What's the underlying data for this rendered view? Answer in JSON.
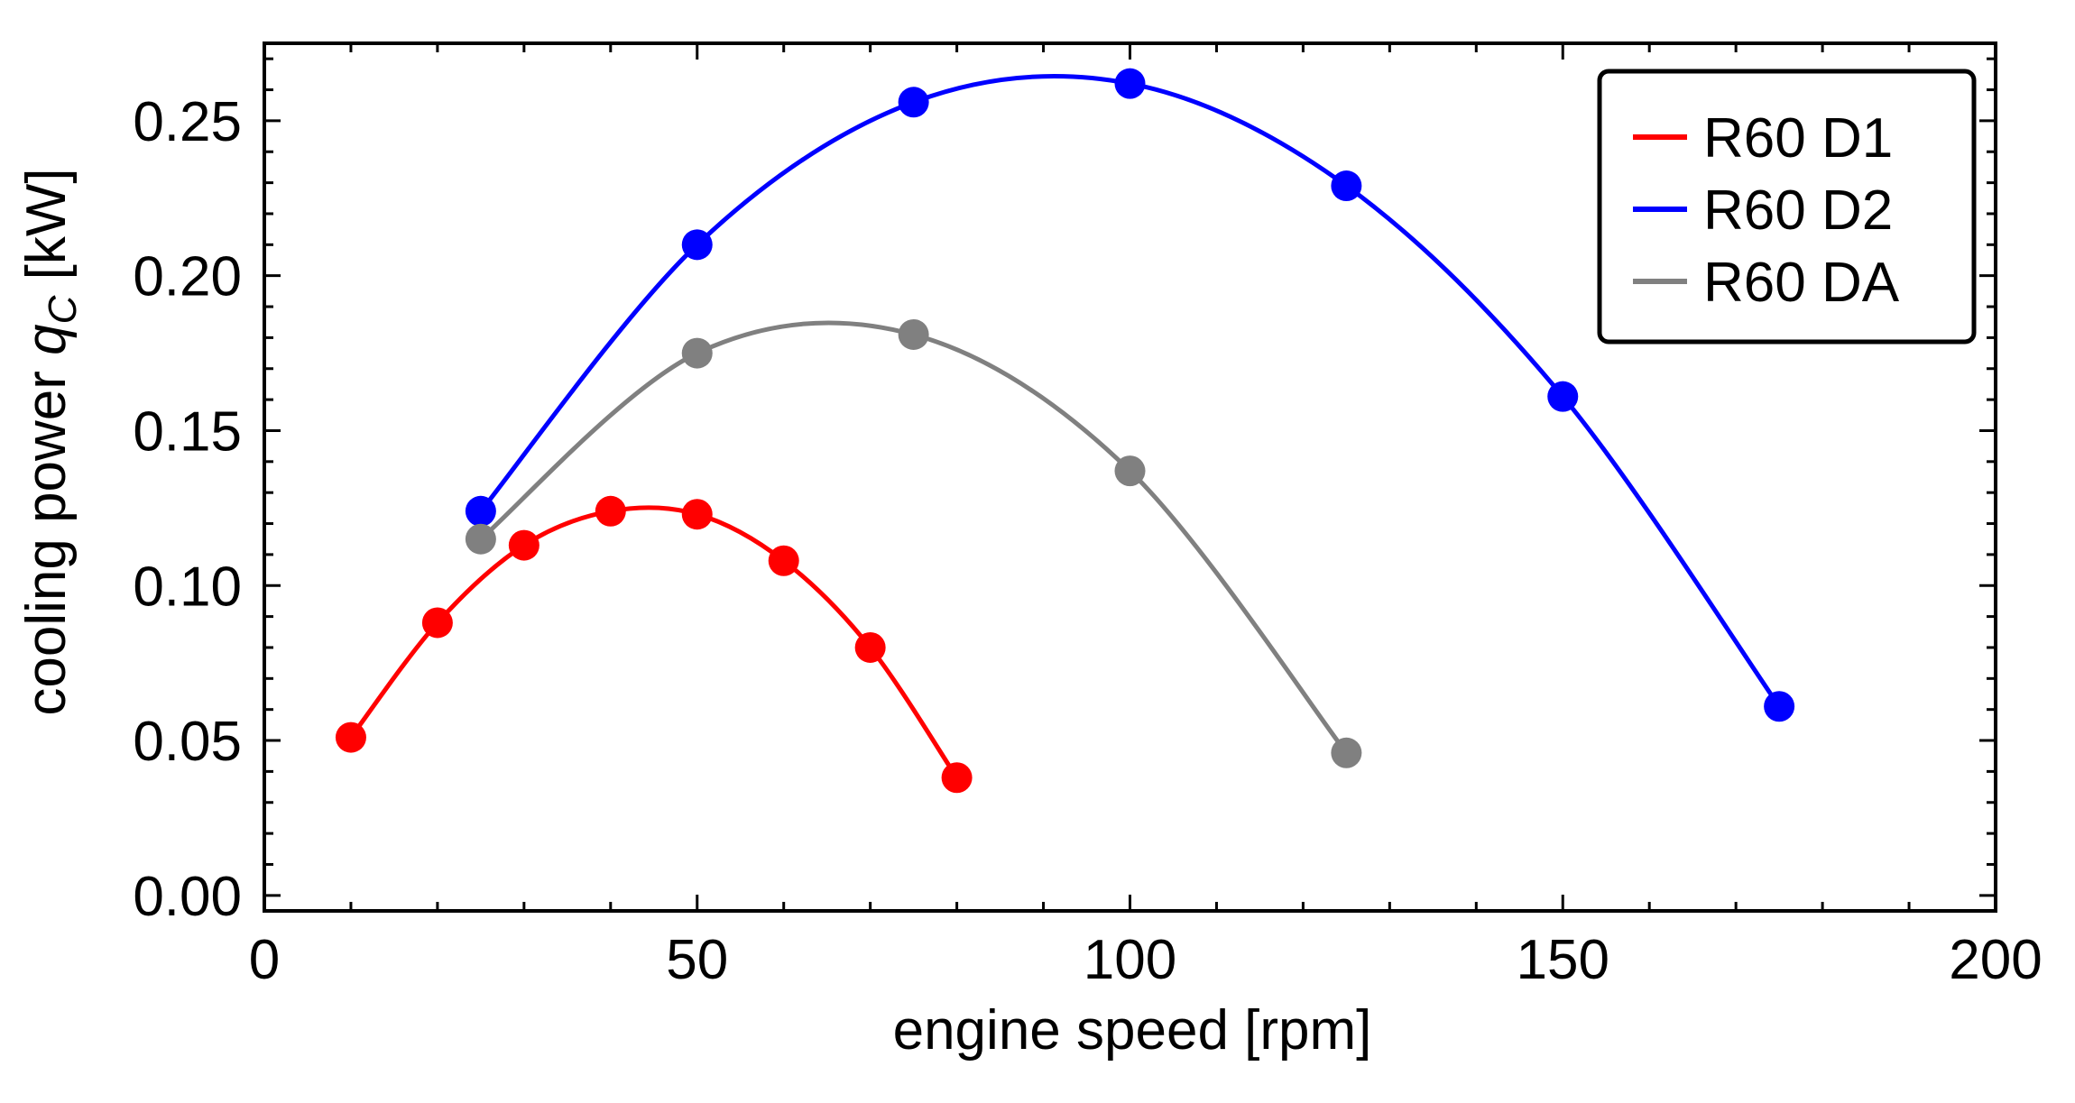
{
  "chart_data": {
    "type": "line",
    "title": "",
    "xlabel": "engine speed [rpm]",
    "ylabel": {
      "prefix": "cooling power ",
      "symbol": "q",
      "subscript": "C",
      "suffix": " [kW]"
    },
    "xlim": [
      0,
      200
    ],
    "ylim": [
      -0.005,
      0.275
    ],
    "x_ticks": [
      0,
      50,
      100,
      150,
      200
    ],
    "x_tick_labels": [
      "0",
      "50",
      "100",
      "150",
      "200"
    ],
    "y_ticks": [
      0.0,
      0.05,
      0.1,
      0.15,
      0.2,
      0.25
    ],
    "y_tick_labels": [
      "0.00",
      "0.05",
      "0.10",
      "0.15",
      "0.20",
      "0.25"
    ],
    "grid": false,
    "legend_position": "top-right",
    "series": [
      {
        "name": "R60 D1",
        "color": "#ff0000",
        "x": [
          10,
          20,
          30,
          40,
          50,
          60,
          70,
          80
        ],
        "y": [
          0.051,
          0.088,
          0.113,
          0.124,
          0.123,
          0.108,
          0.08,
          0.038
        ]
      },
      {
        "name": "R60 D2",
        "color": "#0000ff",
        "x": [
          25,
          50,
          75,
          100,
          125,
          150,
          175
        ],
        "y": [
          0.124,
          0.21,
          0.256,
          0.262,
          0.229,
          0.161,
          0.061
        ]
      },
      {
        "name": "R60 DA",
        "color": "#808080",
        "x": [
          25,
          50,
          75,
          100,
          125
        ],
        "y": [
          0.115,
          0.175,
          0.181,
          0.137,
          0.046
        ]
      }
    ]
  }
}
